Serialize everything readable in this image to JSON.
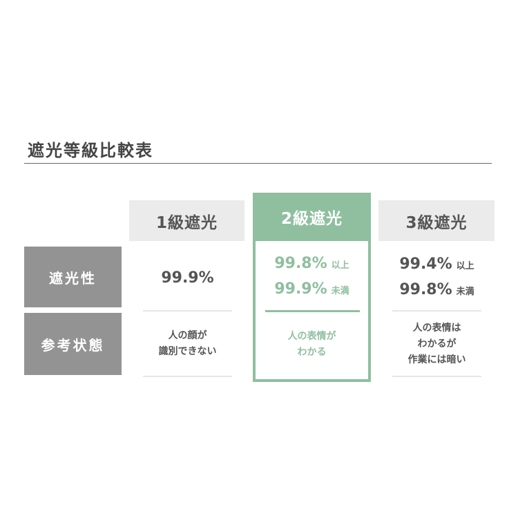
{
  "title": "遮光等級比較表",
  "row_labels": [
    "遮光性",
    "参考状態"
  ],
  "columns": [
    {
      "header": "1級遮光",
      "pct": [
        {
          "value": "99.9%",
          "suffix": ""
        }
      ],
      "desc": [
        "人の顔が",
        "識別できない"
      ]
    },
    {
      "header": "2級遮光",
      "pct": [
        {
          "value": "99.8%",
          "suffix": "以上"
        },
        {
          "value": "99.9%",
          "suffix": "未満"
        }
      ],
      "desc": [
        "人の表情が",
        "わかる"
      ],
      "highlight": true
    },
    {
      "header": "3級遮光",
      "pct": [
        {
          "value": "99.4%",
          "suffix": "以上"
        },
        {
          "value": "99.8%",
          "suffix": "未満"
        }
      ],
      "desc": [
        "人の表情は",
        "わかるが",
        "作業には暗い"
      ]
    }
  ],
  "colors": {
    "accent": "#8fbf9f",
    "label_bg": "#939393",
    "header_bg": "#ebebeb"
  }
}
